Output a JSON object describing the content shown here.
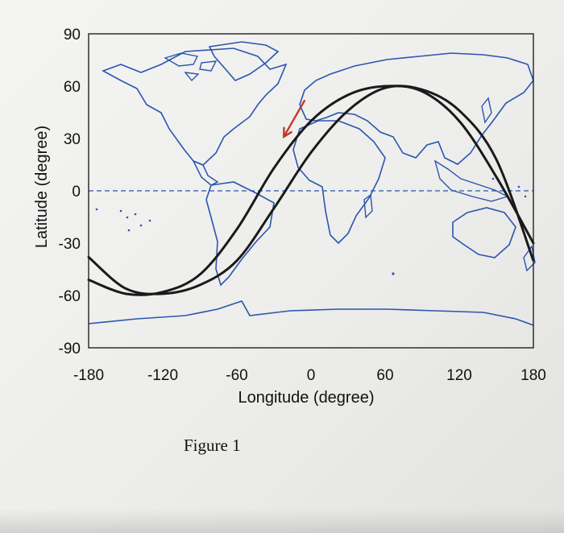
{
  "caption": "Figure 1",
  "chart_data": {
    "type": "line",
    "title": "",
    "xlabel": "Longitude (degree)",
    "ylabel": "Latitude (degree)",
    "xlim": [
      -180,
      180
    ],
    "ylim": [
      -90,
      90
    ],
    "x_ticks": [
      -180,
      -120,
      -60,
      0,
      60,
      120,
      180
    ],
    "y_ticks": [
      90,
      60,
      30,
      0,
      -30,
      -60,
      -90
    ],
    "grid": false,
    "background": "world coastline map",
    "equator": "dashed line at latitude 0",
    "series": [
      {
        "color": "#1a1a1a",
        "x": [
          -180,
          -150,
          -120,
          -90,
          -60,
          -30,
          0,
          30,
          60,
          90,
          120,
          150,
          180
        ],
        "y": [
          -51,
          -59,
          -58,
          -48,
          -22,
          13,
          40,
          55,
          60,
          57,
          40,
          8,
          -30
        ]
      },
      {
        "color": "#1a1a1a",
        "x": [
          -180,
          -150,
          -120,
          -90,
          -60,
          -30,
          0,
          30,
          60,
          90,
          120,
          150,
          180
        ],
        "y": [
          -38,
          -56,
          -59,
          -54,
          -40,
          -10,
          22,
          46,
          59,
          58,
          46,
          18,
          -40
        ]
      }
    ],
    "annotations": [
      {
        "type": "arrow",
        "color": "#c0392b",
        "from": [
          -5,
          52
        ],
        "to": [
          -22,
          31
        ]
      }
    ],
    "colors": {
      "coastline": "#2a55b0",
      "curves": "#1a1a1a",
      "arrow": "#c0392b"
    }
  }
}
